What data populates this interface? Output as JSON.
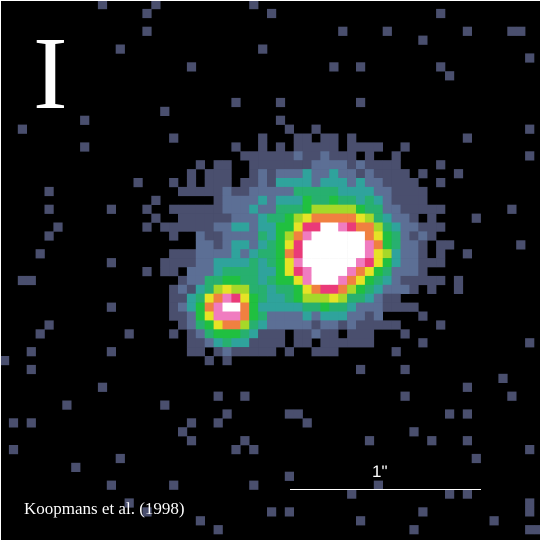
{
  "image": {
    "band_label": "I",
    "scale_bar_label": "1\"",
    "credit": "Koopmans et al. (1998)",
    "colormap": [
      "#000000",
      "#4a4f6e",
      "#5c6f95",
      "#2fa39c",
      "#27b06f",
      "#20c040",
      "#a6d829",
      "#e6e326",
      "#f08040",
      "#ea3a78",
      "#f07cc0",
      "#ffffff"
    ]
  }
}
